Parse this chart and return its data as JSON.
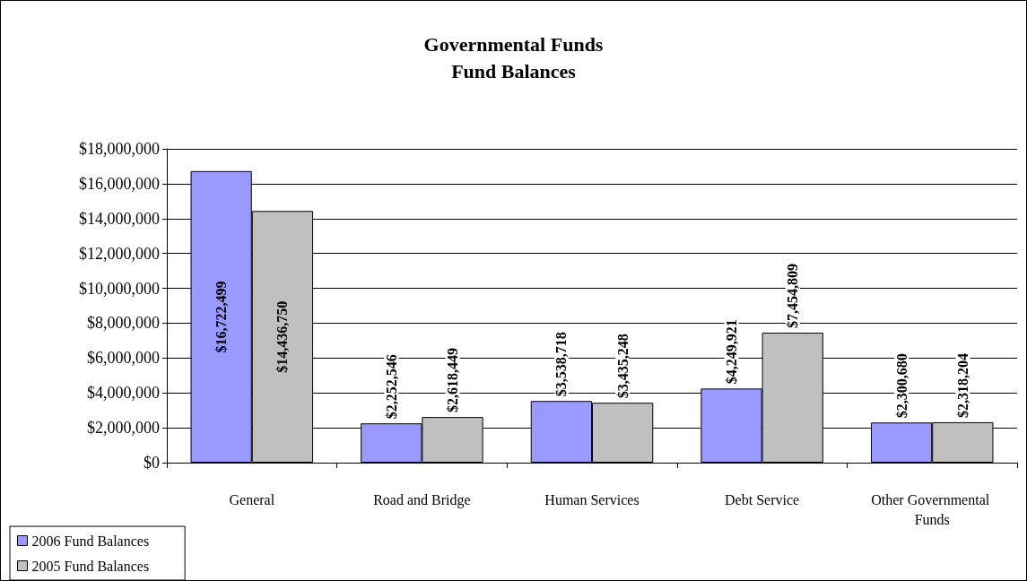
{
  "chart_data": {
    "type": "bar",
    "title": "Governmental Funds\nFund Balances",
    "categories": [
      "General",
      "Road and Bridge",
      "Human Services",
      "Debt Service",
      "Other Governmental Funds"
    ],
    "series": [
      {
        "name": "2006 Fund Balances",
        "color": "#9999ff",
        "values": [
          16722499,
          2252546,
          3538718,
          4249921,
          2300680
        ],
        "value_labels": [
          "$16,722,499",
          "$2,252,546",
          "$3,538,718",
          "$4,249,921",
          "$2,300,680"
        ]
      },
      {
        "name": "2005 Fund Balances",
        "color": "#c0c0c0",
        "values": [
          14436750,
          2618449,
          3435248,
          7454809,
          2318204
        ],
        "value_labels": [
          "$14,436,750",
          "$2,618,449",
          "$3,435,248",
          "$7,454,809",
          "$2,318,204"
        ]
      }
    ],
    "ylim": [
      0,
      18000000
    ],
    "yticks": [
      {
        "value": 0,
        "label": "$0"
      },
      {
        "value": 2000000,
        "label": "$2,000,000"
      },
      {
        "value": 4000000,
        "label": "$4,000,000"
      },
      {
        "value": 6000000,
        "label": "$6,000,000"
      },
      {
        "value": 8000000,
        "label": "$8,000,000"
      },
      {
        "value": 10000000,
        "label": "$10,000,000"
      },
      {
        "value": 12000000,
        "label": "$12,000,000"
      },
      {
        "value": 14000000,
        "label": "$14,000,000"
      },
      {
        "value": 16000000,
        "label": "$16,000,000"
      },
      {
        "value": 18000000,
        "label": "$18,000,000"
      }
    ],
    "grid": "y",
    "legend": "bottom left"
  }
}
